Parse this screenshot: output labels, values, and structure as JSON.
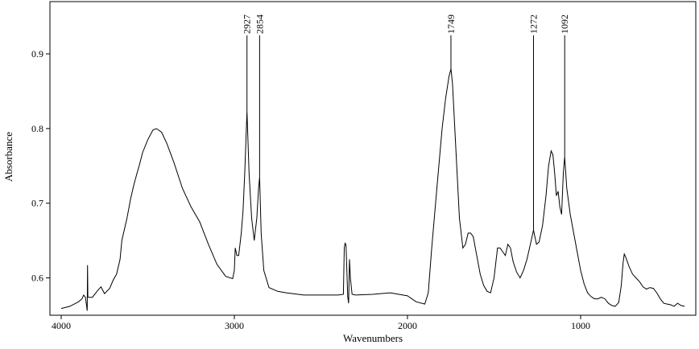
{
  "chart_data": {
    "type": "line",
    "title": "",
    "xlabel": "Wavenumbers",
    "ylabel": "Absorbance",
    "xlim": [
      4000,
      400
    ],
    "ylim": [
      0.55,
      0.97
    ],
    "x_ticks": [
      4000,
      3000,
      2000,
      1000
    ],
    "x_tick_labels": [
      "4000",
      "3000",
      "2000",
      "1000"
    ],
    "y_ticks": [
      0.6,
      0.7,
      0.8,
      0.9
    ],
    "y_tick_labels": [
      "0.6",
      "0.7",
      "0.8",
      "0.9"
    ],
    "grid": false,
    "series": [
      {
        "color": "#000000",
        "points": [
          [
            4000,
            0.559
          ],
          [
            3950,
            0.562
          ],
          [
            3900,
            0.568
          ],
          [
            3880,
            0.572
          ],
          [
            3870,
            0.577
          ],
          [
            3860,
            0.574
          ],
          [
            3850,
            0.556
          ],
          [
            3848,
            0.617
          ],
          [
            3846,
            0.574
          ],
          [
            3820,
            0.574
          ],
          [
            3790,
            0.583
          ],
          [
            3770,
            0.588
          ],
          [
            3750,
            0.579
          ],
          [
            3720,
            0.586
          ],
          [
            3700,
            0.597
          ],
          [
            3680,
            0.605
          ],
          [
            3660,
            0.625
          ],
          [
            3650,
            0.65
          ],
          [
            3640,
            0.66
          ],
          [
            3620,
            0.68
          ],
          [
            3600,
            0.705
          ],
          [
            3580,
            0.725
          ],
          [
            3560,
            0.742
          ],
          [
            3550,
            0.75
          ],
          [
            3530,
            0.768
          ],
          [
            3500,
            0.785
          ],
          [
            3470,
            0.798
          ],
          [
            3450,
            0.8
          ],
          [
            3420,
            0.795
          ],
          [
            3390,
            0.78
          ],
          [
            3350,
            0.755
          ],
          [
            3300,
            0.72
          ],
          [
            3250,
            0.695
          ],
          [
            3200,
            0.675
          ],
          [
            3150,
            0.645
          ],
          [
            3100,
            0.618
          ],
          [
            3050,
            0.602
          ],
          [
            3010,
            0.599
          ],
          [
            3000,
            0.61
          ],
          [
            2995,
            0.64
          ],
          [
            2985,
            0.63
          ],
          [
            2975,
            0.63
          ],
          [
            2960,
            0.66
          ],
          [
            2950,
            0.69
          ],
          [
            2940,
            0.74
          ],
          [
            2927,
            0.823
          ],
          [
            2915,
            0.74
          ],
          [
            2900,
            0.68
          ],
          [
            2885,
            0.65
          ],
          [
            2870,
            0.68
          ],
          [
            2860,
            0.72
          ],
          [
            2854,
            0.735
          ],
          [
            2845,
            0.66
          ],
          [
            2830,
            0.61
          ],
          [
            2800,
            0.587
          ],
          [
            2750,
            0.582
          ],
          [
            2700,
            0.58
          ],
          [
            2600,
            0.577
          ],
          [
            2500,
            0.577
          ],
          [
            2400,
            0.577
          ],
          [
            2370,
            0.578
          ],
          [
            2365,
            0.64
          ],
          [
            2360,
            0.647
          ],
          [
            2355,
            0.643
          ],
          [
            2345,
            0.575
          ],
          [
            2340,
            0.566
          ],
          [
            2335,
            0.625
          ],
          [
            2330,
            0.6
          ],
          [
            2320,
            0.578
          ],
          [
            2300,
            0.577
          ],
          [
            2200,
            0.578
          ],
          [
            2100,
            0.58
          ],
          [
            2000,
            0.576
          ],
          [
            1950,
            0.568
          ],
          [
            1900,
            0.565
          ],
          [
            1880,
            0.58
          ],
          [
            1860,
            0.64
          ],
          [
            1830,
            0.72
          ],
          [
            1800,
            0.8
          ],
          [
            1780,
            0.84
          ],
          [
            1760,
            0.87
          ],
          [
            1749,
            0.88
          ],
          [
            1740,
            0.86
          ],
          [
            1720,
            0.77
          ],
          [
            1700,
            0.68
          ],
          [
            1680,
            0.64
          ],
          [
            1665,
            0.645
          ],
          [
            1650,
            0.66
          ],
          [
            1635,
            0.66
          ],
          [
            1620,
            0.655
          ],
          [
            1600,
            0.63
          ],
          [
            1580,
            0.605
          ],
          [
            1560,
            0.59
          ],
          [
            1540,
            0.582
          ],
          [
            1520,
            0.58
          ],
          [
            1500,
            0.6
          ],
          [
            1480,
            0.64
          ],
          [
            1465,
            0.64
          ],
          [
            1450,
            0.635
          ],
          [
            1435,
            0.63
          ],
          [
            1420,
            0.645
          ],
          [
            1405,
            0.64
          ],
          [
            1390,
            0.622
          ],
          [
            1370,
            0.608
          ],
          [
            1350,
            0.6
          ],
          [
            1330,
            0.61
          ],
          [
            1310,
            0.625
          ],
          [
            1290,
            0.645
          ],
          [
            1272,
            0.664
          ],
          [
            1255,
            0.645
          ],
          [
            1240,
            0.648
          ],
          [
            1220,
            0.67
          ],
          [
            1200,
            0.71
          ],
          [
            1185,
            0.75
          ],
          [
            1170,
            0.77
          ],
          [
            1160,
            0.765
          ],
          [
            1150,
            0.74
          ],
          [
            1140,
            0.71
          ],
          [
            1130,
            0.716
          ],
          [
            1120,
            0.695
          ],
          [
            1110,
            0.685
          ],
          [
            1100,
            0.74
          ],
          [
            1092,
            0.762
          ],
          [
            1080,
            0.72
          ],
          [
            1060,
            0.685
          ],
          [
            1040,
            0.66
          ],
          [
            1020,
            0.635
          ],
          [
            1000,
            0.61
          ],
          [
            980,
            0.592
          ],
          [
            960,
            0.58
          ],
          [
            940,
            0.575
          ],
          [
            920,
            0.572
          ],
          [
            900,
            0.572
          ],
          [
            880,
            0.574
          ],
          [
            860,
            0.572
          ],
          [
            840,
            0.566
          ],
          [
            820,
            0.563
          ],
          [
            800,
            0.562
          ],
          [
            780,
            0.567
          ],
          [
            765,
            0.59
          ],
          [
            755,
            0.62
          ],
          [
            748,
            0.632
          ],
          [
            740,
            0.628
          ],
          [
            720,
            0.615
          ],
          [
            700,
            0.605
          ],
          [
            680,
            0.6
          ],
          [
            660,
            0.595
          ],
          [
            640,
            0.588
          ],
          [
            620,
            0.585
          ],
          [
            600,
            0.587
          ],
          [
            580,
            0.586
          ],
          [
            560,
            0.58
          ],
          [
            540,
            0.572
          ],
          [
            520,
            0.566
          ],
          [
            500,
            0.565
          ],
          [
            480,
            0.564
          ],
          [
            460,
            0.562
          ],
          [
            440,
            0.566
          ],
          [
            420,
            0.563
          ],
          [
            400,
            0.562
          ]
        ]
      }
    ],
    "peaks": [
      {
        "x": 2927,
        "y": 0.823,
        "label": "2927"
      },
      {
        "x": 2854,
        "y": 0.735,
        "label": "2854"
      },
      {
        "x": 1749,
        "y": 0.88,
        "label": "1749"
      },
      {
        "x": 1272,
        "y": 0.664,
        "label": "1272"
      },
      {
        "x": 1092,
        "y": 0.762,
        "label": "1092"
      }
    ]
  }
}
